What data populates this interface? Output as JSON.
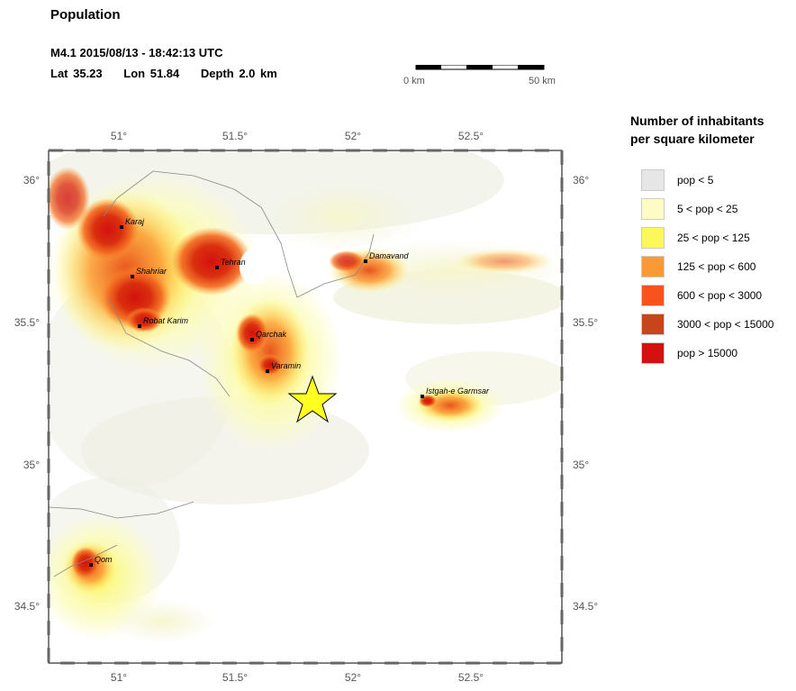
{
  "header": {
    "title": "Population",
    "event_line": "M4.1  2015/08/13 - 18:42:13 UTC",
    "lat": "Lat 35.23",
    "lon": "Lon  51.84",
    "depth": "Depth  2.0 km"
  },
  "scale": {
    "left_label": "0 km",
    "right_label": "50 km"
  },
  "axes": {
    "top_ticks": [
      "51°",
      "51.5°",
      "52°",
      "52.5°"
    ],
    "bottom_ticks": [
      "51°",
      "51.5°",
      "52°",
      "52.5°"
    ],
    "left_ticks": [
      "36°",
      "35.5°",
      "35°",
      "34.5°"
    ],
    "right_ticks": [
      "36°",
      "35.5°",
      "35°",
      "34.5°"
    ]
  },
  "cities": [
    {
      "name": "Karaj"
    },
    {
      "name": "Tehran"
    },
    {
      "name": "Shahriar"
    },
    {
      "name": "Robat Karim"
    },
    {
      "name": "Damavand"
    },
    {
      "name": "Qarchak"
    },
    {
      "name": "Varamin"
    },
    {
      "name": "Istgah-e Garmsar"
    },
    {
      "name": "Qom"
    }
  ],
  "legend": {
    "title_line1": "Number of inhabitants",
    "title_line2": "per square kilometer",
    "items": [
      {
        "label": "pop < 5",
        "color": "#e6e6e6"
      },
      {
        "label": "5 < pop < 25",
        "color": "#fcfcc4"
      },
      {
        "label": "25 < pop < 125",
        "color": "#fdf85a"
      },
      {
        "label": "125 < pop < 600",
        "color": "#fb9a34"
      },
      {
        "label": "600 < pop < 3000",
        "color": "#f9531d"
      },
      {
        "label": "3000 < pop < 15000",
        "color": "#c8441a"
      },
      {
        "label": "pop > 15000",
        "color": "#d4110f"
      }
    ]
  },
  "epicenter_color": "#ffff22"
}
